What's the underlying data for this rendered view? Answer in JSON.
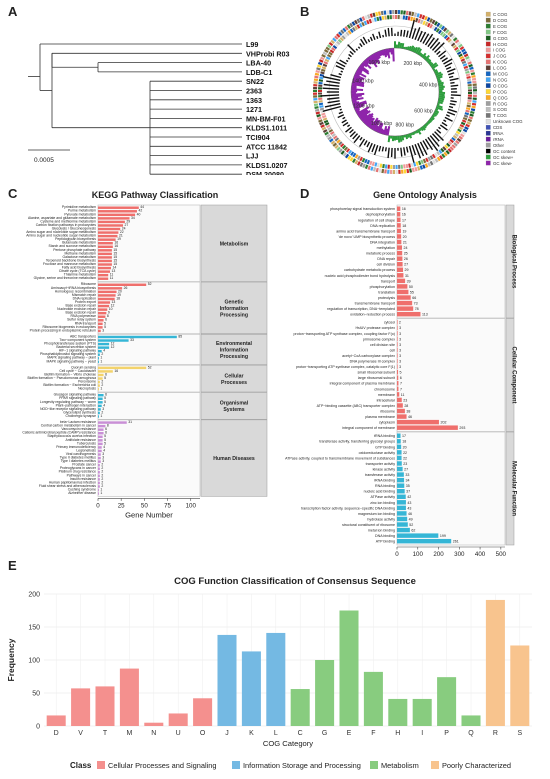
{
  "panelA": {
    "label": "A",
    "scale_label": "0.0005",
    "taxa": [
      "L99",
      "VHProbi R03",
      "LBA-40",
      "LDB-C1",
      "SN22",
      "2363",
      "1363",
      "1271",
      "MN-BM-F01",
      "KLDS1.1011",
      "TCI904",
      "ATCC 11842",
      "LJJ",
      "KLDS1.0207",
      "DSM 20080"
    ],
    "highlight_taxon": "SN22",
    "highlight_color": "#e53935"
  },
  "panelB": {
    "label": "B",
    "ring_labels": [
      "200 kbp",
      "400 kbp",
      "600 kbp",
      "800 kbp",
      "1000 kbp",
      "1200 kbp",
      "1400 kbp",
      "1600 kbp"
    ],
    "legend": [
      {
        "code": "C COG",
        "color": "#d4b16a"
      },
      {
        "code": "D COG",
        "color": "#7b6a3a"
      },
      {
        "code": "E COG",
        "color": "#2e7d32"
      },
      {
        "code": "F COG",
        "color": "#81c784"
      },
      {
        "code": "G COG",
        "color": "#1b5e20"
      },
      {
        "code": "H COG",
        "color": "#c62828"
      },
      {
        "code": "I COG",
        "color": "#ef9a9a"
      },
      {
        "code": "J COG",
        "color": "#d32f2f"
      },
      {
        "code": "K COG",
        "color": "#e57373"
      },
      {
        "code": "L COG",
        "color": "#5d4037"
      },
      {
        "code": "M COG",
        "color": "#1565c0"
      },
      {
        "code": "N COG",
        "color": "#42a5f5"
      },
      {
        "code": "O COG",
        "color": "#0d47a1"
      },
      {
        "code": "P COG",
        "color": "#fdd835"
      },
      {
        "code": "Q COG",
        "color": "#f9a825"
      },
      {
        "code": "R COG",
        "color": "#9e9e9e"
      },
      {
        "code": "S COG",
        "color": "#bdbdbd"
      },
      {
        "code": "T COG",
        "color": "#757575"
      },
      {
        "code": "Unknown COG",
        "color": "#e0e0e0"
      },
      {
        "code": "CDS",
        "color": "#3f51b5"
      },
      {
        "code": "tRNA",
        "color": "#283593"
      },
      {
        "code": "rRNA",
        "color": "#6a1b9a"
      },
      {
        "code": "Other",
        "color": "#9e9e9e"
      },
      {
        "code": "GC content",
        "color": "#000000"
      },
      {
        "code": "GC skew+",
        "color": "#2e9e3e"
      },
      {
        "code": "GC skew-",
        "color": "#8e24aa"
      }
    ]
  },
  "panelC": {
    "label": "C",
    "chart_data": {
      "type": "bar",
      "title": "KEGG Pathway Classification",
      "xlabel": "Gene Number",
      "xticks": [
        0,
        25,
        50,
        75,
        100
      ],
      "xlim": [
        0,
        110
      ],
      "groups": [
        {
          "name": "Metabolism",
          "color": "#ef6f6c",
          "items": [
            [
              "Pyrimidine metabolism",
              44
            ],
            [
              "Purine metabolism",
              42
            ],
            [
              "Pyruvate metabolism",
              40
            ],
            [
              "Alanine, aspartate and glutamate metabolism",
              34
            ],
            [
              "Cysteine and methionine metabolism",
              29
            ],
            [
              "Carbon fixation pathways in prokaryotes",
              27
            ],
            [
              "Glycolysis / Gluconeogenesis",
              24
            ],
            [
              "Amino sugar and nucleotide sugar metabolism",
              22
            ],
            [
              "Amino sugar and nucleotide sugar metabolism",
              21
            ],
            [
              "Peptidoglycan biosynthesis",
              19
            ],
            [
              "Butanoate metabolism",
              16
            ],
            [
              "Starch and sucrose metabolism",
              16
            ],
            [
              "Pentose phosphate pathway",
              15
            ],
            [
              "Methane metabolism",
              15
            ],
            [
              "Galactose metabolism",
              15
            ],
            [
              "Terpenoid backbone biosynthesis",
              15
            ],
            [
              "Fructose and mannose metabolism",
              15
            ],
            [
              "Fatty acid biosynthesis",
              14
            ],
            [
              "Citrate cycle (TCA cycle)",
              13
            ],
            [
              "Thiamine metabolism",
              11
            ],
            [
              "Glycine, serine and threonine metabolism",
              11
            ]
          ]
        },
        {
          "name": "Genetic Information Processing",
          "color": "#ef6f6c",
          "items": [
            [
              "Ribosome",
              52
            ],
            [
              "Aminoacyl−tRNA biosynthesis",
              26
            ],
            [
              "Homologous recombination",
              20
            ],
            [
              "Mismatch repair",
              19
            ],
            [
              "DNA replication",
              18
            ],
            [
              "Protein export",
              13
            ],
            [
              "Base excision repair",
              12
            ],
            [
              "Nucleotide excision repair",
              10
            ],
            [
              "Base excision repair",
              9
            ],
            [
              "RNA polymerase",
              8
            ],
            [
              "Sulfur relay system",
              6
            ],
            [
              "RNA transport",
              5
            ],
            [
              "Ribosome biogenesis in eukaryotes",
              5
            ],
            [
              "Protein processing in endoplasmic reticulum",
              3
            ]
          ]
        },
        {
          "name": "Environmental Information Processing",
          "color": "#35b6d6",
          "items": [
            [
              "ABC transporters",
              85
            ],
            [
              "Two−component system",
              33
            ],
            [
              "Phosphotransferase system (PTS)",
              12
            ],
            [
              "Bacterial secretion system",
              12
            ],
            [
              "HIF−1 signaling pathway",
              4
            ],
            [
              "Phosphatidylinositol signaling system",
              2
            ],
            [
              "MAPK signaling pathway − plant",
              1
            ],
            [
              "MAPK signaling pathway − yeast",
              1
            ]
          ]
        },
        {
          "name": "Cellular Processes",
          "color": "#f3d36b",
          "items": [
            [
              "Quorum sensing",
              52
            ],
            [
              "Cell cycle − Caulobacter",
              16
            ],
            [
              "Biofilm formation − Vibrio cholerae",
              6
            ],
            [
              "Biofilm formation − Pseudomonas aeruginosa",
              5
            ],
            [
              "Peroxisome",
              2
            ],
            [
              "Biofilm formation − Escherichia coli",
              2
            ],
            [
              "Necroptosis",
              1
            ]
          ]
        },
        {
          "name": "Organismal Systems",
          "color": "#35b6d6",
          "items": [
            [
              "Glucagon signaling pathway",
              6
            ],
            [
              "PPAR signaling pathway",
              5
            ],
            [
              "Longevity regulating pathway − worm",
              5
            ],
            [
              "Plant−pathogen interaction",
              4
            ],
            [
              "NOD−like receptor signaling pathway",
              3
            ],
            [
              "Glycerolipid synthesis",
              2
            ],
            [
              "Cholinergic synapse",
              1
            ]
          ]
        },
        {
          "name": "Human Diseases",
          "color": "#c98fd6",
          "items": [
            [
              "beta−Lactam resistance",
              31
            ],
            [
              "Central carbon metabolism in cancer",
              8
            ],
            [
              "Vancomycin resistance",
              6
            ],
            [
              "Cationic antimicrobial peptide (CAMP) resistance",
              6
            ],
            [
              "Staphylococcus aureus infection",
              5
            ],
            [
              "Antifolate resistance",
              5
            ],
            [
              "Tuberculosis",
              5
            ],
            [
              "Primary immunodeficiency",
              4
            ],
            [
              "Legionellosis",
              4
            ],
            [
              "Viral carcinogenesis",
              3
            ],
            [
              "Type II diabetes mellitus",
              3
            ],
            [
              "Type I diabetes mellitus",
              3
            ],
            [
              "Prostate cancer",
              2
            ],
            [
              "Proteoglycans in cancer",
              2
            ],
            [
              "Platinum drug resistance",
              2
            ],
            [
              "Pathways in cancer",
              2
            ],
            [
              "Insulin resistance",
              2
            ],
            [
              "Human papillomavirus infection",
              2
            ],
            [
              "Fluid shear stress and atherosclerosis",
              2
            ],
            [
              "Cushing syndrome",
              1
            ],
            [
              "Alzheimer disease",
              1
            ]
          ]
        }
      ]
    }
  },
  "panelD": {
    "label": "D",
    "chart_data": {
      "type": "bar",
      "title": "Gene Ontology Analysis",
      "xticks": [
        0,
        100,
        200,
        300,
        400,
        500
      ],
      "xlim": [
        0,
        520
      ],
      "groups": [
        {
          "name": "Biological Process",
          "color": "#ef6f6c",
          "items": [
            [
              "phosphorelay signal transduction system",
              16
            ],
            [
              "dephosphorylation",
              16
            ],
            [
              "regulation of cell shape",
              17
            ],
            [
              "DNA replication",
              18
            ],
            [
              "amino acid transmembrane transport",
              19
            ],
            [
              "'de novo' UMP biosynthetic process",
              20
            ],
            [
              "DNA integration",
              21
            ],
            [
              "methylation",
              24
            ],
            [
              "metabolic process",
              25
            ],
            [
              "DNA repair",
              26
            ],
            [
              "cell division",
              27
            ],
            [
              "carbohydrate metabolic process",
              29
            ],
            [
              "nucleic acid phosphodiester bond hydrolysis",
              31
            ],
            [
              "transport",
              39
            ],
            [
              "phosphorylation",
              50
            ],
            [
              "translation",
              55
            ],
            [
              "proteolysis",
              66
            ],
            [
              "transmembrane transport",
              73
            ],
            [
              "regulation of transcription, DNA−templated",
              78
            ],
            [
              "oxidation−reduction process",
              113
            ]
          ]
        },
        {
          "name": "Cellular Component",
          "color": "#ef6f6c",
          "items": [
            [
              "cytosol",
              2
            ],
            [
              "HslUV protease complex",
              3
            ],
            [
              "proton−transporting ATP synthase complex, coupling factor F(o)",
              3
            ],
            [
              "primosome complex",
              3
            ],
            [
              "cell division site",
              3
            ],
            [
              "cell",
              3
            ],
            [
              "acetyl−CoA carboxylase complex",
              3
            ],
            [
              "DNA polymerase III complex",
              3
            ],
            [
              "proton−transporting ATP synthase complex, catalytic core F(1)",
              3
            ],
            [
              "small ribosomal subunit",
              5
            ],
            [
              "large ribosomal subunit",
              6
            ],
            [
              "integral component of plasma membrane",
              7
            ],
            [
              "chromosome",
              7
            ],
            [
              "membrane",
              11
            ],
            [
              "intracellular",
              23
            ],
            [
              "ATP−binding cassette (ABC) transporter complex",
              28
            ],
            [
              "ribosome",
              38
            ],
            [
              "plasma membrane",
              46
            ],
            [
              "cytoplasm",
              202
            ],
            [
              "integral component of membrane",
              293
            ]
          ]
        },
        {
          "name": "Molecular Function",
          "color": "#35b6d6",
          "items": [
            [
              "tRNA binding",
              17
            ],
            [
              "transferase activity, transferring glycosyl groups",
              18
            ],
            [
              "GTP binding",
              20
            ],
            [
              "oxidoreductase activity",
              22
            ],
            [
              "ATPase activity, coupled to transmembrane movement of substances",
              22
            ],
            [
              "transporter activity",
              23
            ],
            [
              "kinase activity",
              27
            ],
            [
              "transferase activity",
              33
            ],
            [
              "rRNA binding",
              34
            ],
            [
              "RNA binding",
              35
            ],
            [
              "nucleic acid binding",
              37
            ],
            [
              "ATPase activity",
              42
            ],
            [
              "zinc ion binding",
              43
            ],
            [
              "transcription factor activity, sequence−specific DNA binding",
              43
            ],
            [
              "magnesium ion binding",
              46
            ],
            [
              "hydrolase activity",
              49
            ],
            [
              "structural constituent of ribosome",
              52
            ],
            [
              "metal ion binding",
              62
            ],
            [
              "DNA binding",
              199
            ],
            [
              "ATP binding",
              261
            ]
          ]
        }
      ]
    }
  },
  "panelE": {
    "label": "E",
    "chart_data": {
      "type": "bar",
      "title": "COG Function Classification of Consensus Sequence",
      "xlabel": "COG Category",
      "ylabel": "Frequency",
      "ylim": [
        0,
        200
      ],
      "yticks": [
        0,
        50,
        100,
        150,
        200
      ],
      "categories": [
        "D",
        "V",
        "T",
        "M",
        "N",
        "U",
        "O",
        "J",
        "K",
        "L",
        "C",
        "G",
        "E",
        "F",
        "H",
        "I",
        "P",
        "Q",
        "R",
        "S"
      ],
      "values": [
        16,
        57,
        60,
        87,
        5,
        19,
        42,
        138,
        113,
        141,
        56,
        100,
        175,
        82,
        41,
        41,
        74,
        16,
        191,
        122
      ],
      "classes": [
        "Cellular Processes and Signaling",
        "Cellular Processes and Signaling",
        "Cellular Processes and Signaling",
        "Cellular Processes and Signaling",
        "Cellular Processes and Signaling",
        "Cellular Processes and Signaling",
        "Cellular Processes and Signaling",
        "Information Storage and Processing",
        "Information Storage and Processing",
        "Information Storage and Processing",
        "Metabolism",
        "Metabolism",
        "Metabolism",
        "Metabolism",
        "Metabolism",
        "Metabolism",
        "Metabolism",
        "Metabolism",
        "Poorly Characterized",
        "Poorly Characterized"
      ],
      "legend_title": "Class",
      "legend": [
        {
          "name": "Cellular Processes and Signaling",
          "color": "#f4908e"
        },
        {
          "name": "Information Storage and Processing",
          "color": "#74b9e3"
        },
        {
          "name": "Metabolism",
          "color": "#88cc7f"
        },
        {
          "name": "Poorly Characterized",
          "color": "#f8c48e"
        }
      ]
    }
  }
}
